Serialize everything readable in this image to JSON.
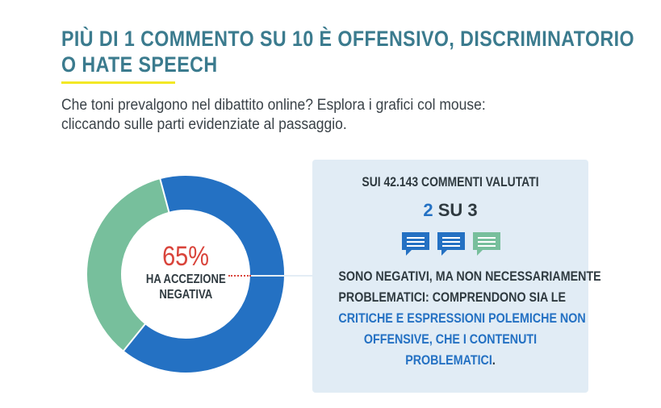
{
  "header": {
    "title_line1": "Più di 1 commento su 10 è offensivo, discriminatorio",
    "title_line2": "o hate speech",
    "subtitle_line1": "Che toni prevalgono nel dibattito online? Esplora i grafici col mouse:",
    "subtitle_line2": "cliccando sulle parti evidenziate al passaggio."
  },
  "donut": {
    "percent_label": "65%",
    "label_line1": "HA ACCEZIONE",
    "label_line2": "NEGATIVA",
    "negative_share": 0.65,
    "other_share": 0.35,
    "colors": {
      "negative": "#2471c3",
      "other": "#77bf9c"
    }
  },
  "info": {
    "heading": "SUI 42.143 COMMENTI VALUTATI",
    "ratio_num": "2",
    "ratio_rest": "SU 3",
    "icons": [
      {
        "name": "comment-icon",
        "color": "#2471c3"
      },
      {
        "name": "comment-icon",
        "color": "#2471c3"
      },
      {
        "name": "comment-icon",
        "color": "#77bf9c"
      }
    ],
    "text_line1": "SONO NEGATIVI, MA NON NECESSARIAMENTE",
    "text_line2": "PROBLEMATICI: COMPRENDONO SIA LE",
    "text_line3_hl": "CRITICHE E ESPRESSIONI POLEMICHE NON",
    "text_line4_hl": "OFFENSIVE, CHE I CONTENUTI",
    "text_line5_hl": "PROBLEMATICI",
    "text_line5_end": "."
  }
}
